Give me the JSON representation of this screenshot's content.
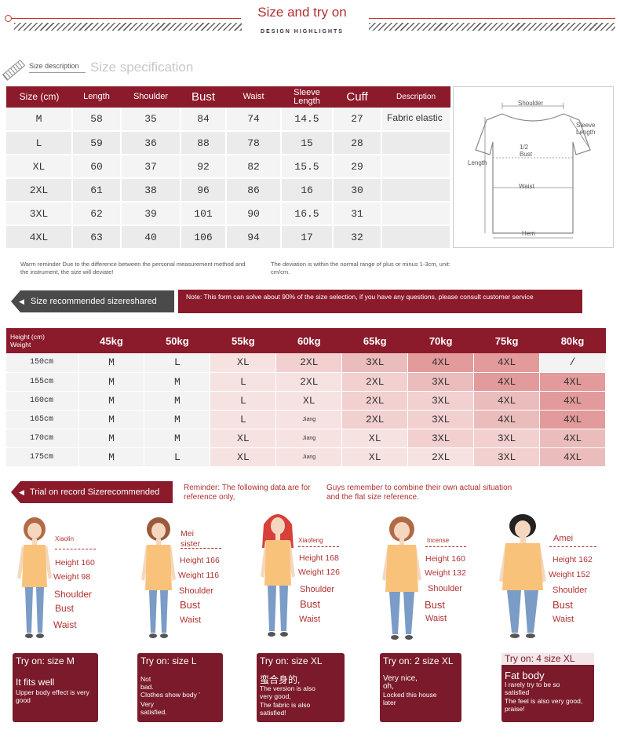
{
  "header": {
    "title": "Size and try on",
    "subtitle": "DESIGN HIGHLIGHTS"
  },
  "spec": {
    "desc_label": "Size description",
    "title": "Size specification",
    "columns": [
      "Size (cm)",
      "Length",
      "Shoulder",
      "Bust",
      "Waist",
      "Sleeve Length",
      "Cuff",
      "Description"
    ],
    "rows": [
      [
        "M",
        "58",
        "35",
        "84",
        "74",
        "14.5",
        "27"
      ],
      [
        "L",
        "59",
        "36",
        "88",
        "78",
        "15",
        "28"
      ],
      [
        "XL",
        "60",
        "37",
        "92",
        "82",
        "15.5",
        "29"
      ],
      [
        "2XL",
        "61",
        "38",
        "96",
        "86",
        "16",
        "30"
      ],
      [
        "3XL",
        "62",
        "39",
        "101",
        "90",
        "16.5",
        "31"
      ],
      [
        "4XL",
        "63",
        "40",
        "106",
        "94",
        "17",
        "32"
      ]
    ],
    "description": "Fabric elastic",
    "diagram_labels": {
      "shoulder": "Shoulder",
      "sleeve": "Sleeve Length",
      "bust": "1/2 Bust",
      "length": "Length",
      "waist": "Waist",
      "hem": "Hem"
    },
    "reminder_left": "Warm reminder Due to the difference between the personal measurement method and the instrument, the size will deviate!",
    "reminder_right": "The deviation is within the normal range of plus or minus 1-3cm, unit: cm/cm."
  },
  "recommend": {
    "tab_label": "Size recommended sizereshared",
    "note": "Note: This form can solve about 90% of the size selection, if you have any questions, please consult customer service",
    "corner_height": "Height (cm)",
    "corner_weight": "Weight",
    "weights": [
      "45kg",
      "50kg",
      "55kg",
      "60kg",
      "65kg",
      "70kg",
      "75kg",
      "80kg"
    ],
    "rows": [
      {
        "height": "150cm",
        "sizes": [
          "M",
          "L",
          "XL",
          "2XL",
          "3XL",
          "4XL",
          "4XL",
          "/"
        ]
      },
      {
        "height": "155cm",
        "sizes": [
          "M",
          "M",
          "L",
          "2XL",
          "2XL",
          "3XL",
          "4XL",
          "4XL"
        ]
      },
      {
        "height": "160cm",
        "sizes": [
          "M",
          "M",
          "L",
          "XL",
          "2XL",
          "3XL",
          "4XL",
          "4XL"
        ]
      },
      {
        "height": "165cm",
        "sizes": [
          "M",
          "M",
          "L",
          "Jiang",
          "2XL",
          "3XL",
          "4XL",
          "4XL"
        ]
      },
      {
        "height": "170cm",
        "sizes": [
          "M",
          "M",
          "XL",
          "Jiang",
          "XL",
          "3XL",
          "3XL",
          "4XL"
        ]
      },
      {
        "height": "175cm",
        "sizes": [
          "M",
          "L",
          "XL",
          "Jiang",
          "XL",
          "2XL",
          "3XL",
          "4XL"
        ]
      }
    ]
  },
  "trial": {
    "tab_label": "Trial on record Sizerecommended",
    "reminder1": "Reminder: The following data are for reference only,",
    "reminder2": "Guys remember to combine their own actual situation and the flat size reference.",
    "people": [
      {
        "name": "Xiaolin",
        "height": "Height 160",
        "weight": "Weight 98",
        "shoulder": "Shoulder",
        "bust": "Bust",
        "waist": "Waist",
        "try": "Try on: size M",
        "line1": "It fits well",
        "line2": "Upper body effect is very good",
        "hair": "#b06a45"
      },
      {
        "name": "Mei sister",
        "height": "Height 166",
        "weight": "Weight 116",
        "shoulder": "Shoulder",
        "bust": "Bust",
        "waist": "Waist",
        "try": "Try on: size L",
        "line1": "Not bad.",
        "line2": "Clothes show body ’",
        "line3": "Very satisfied.",
        "hair": "#9a5a3a"
      },
      {
        "name": "Xiaofeng",
        "height": "Height 168",
        "weight": "Weight 126",
        "shoulder": "Shoulder",
        "bust": "Bust",
        "waist": "Waist",
        "try": "Try on: size XL",
        "line1": "蛮合身的,",
        "line2": "The version is also very good,",
        "line3": "The fabric is also satisfied!",
        "hair": "#d8403a"
      },
      {
        "name": "Incense",
        "height": "Height 160",
        "weight": "Weight 132",
        "shoulder": "Shoulder",
        "bust": "Bust",
        "waist": "Waist",
        "try": "Try on: 2 size XL",
        "line1": "Very nice, oh,",
        "line2": "Locked this house later",
        "hair": "#b06a45"
      },
      {
        "name": "Amei",
        "height": "Height 162",
        "weight": "Weight 152",
        "shoulder": "Shoulder",
        "bust": "Bust",
        "waist": "Waist",
        "try": "Try on: 4 size XL",
        "line1": "Fat body",
        "line2": "I rarely try to be so satisfied",
        "line3": "The feel is also very good, praise!",
        "hair": "#222222"
      }
    ]
  }
}
